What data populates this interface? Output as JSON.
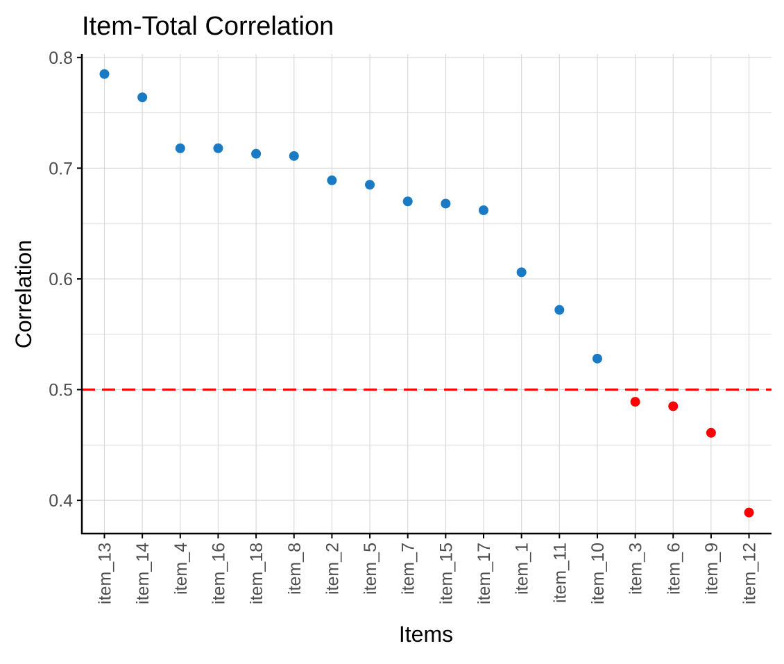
{
  "chart_data": {
    "type": "scatter",
    "title": "Item-Total Correlation",
    "xlabel": "Items",
    "ylabel": "Correlation",
    "categories": [
      "item_13",
      "item_14",
      "item_4",
      "item_16",
      "item_18",
      "item_8",
      "item_2",
      "item_5",
      "item_7",
      "item_15",
      "item_17",
      "item_1",
      "item_11",
      "item_10",
      "item_3",
      "item_6",
      "item_9",
      "item_12"
    ],
    "values": [
      0.785,
      0.764,
      0.718,
      0.718,
      0.713,
      0.711,
      0.689,
      0.685,
      0.67,
      0.668,
      0.662,
      0.606,
      0.572,
      0.528,
      0.489,
      0.485,
      0.461,
      0.389
    ],
    "threshold": 0.5,
    "ylim": [
      0.37,
      0.803
    ],
    "yticks": [
      0.4,
      0.5,
      0.6,
      0.7,
      0.8
    ],
    "ytick_labels": [
      "0.4",
      "0.5",
      "0.6",
      "0.7",
      "0.8"
    ],
    "grid": true,
    "colors": {
      "above": "#1a7bc4",
      "below": "#ff0000",
      "threshold_line": "#ff0000",
      "grid": "#d9d9d9",
      "axis": "#000000",
      "tick_label": "#4d4d4d",
      "text": "#000000"
    }
  }
}
